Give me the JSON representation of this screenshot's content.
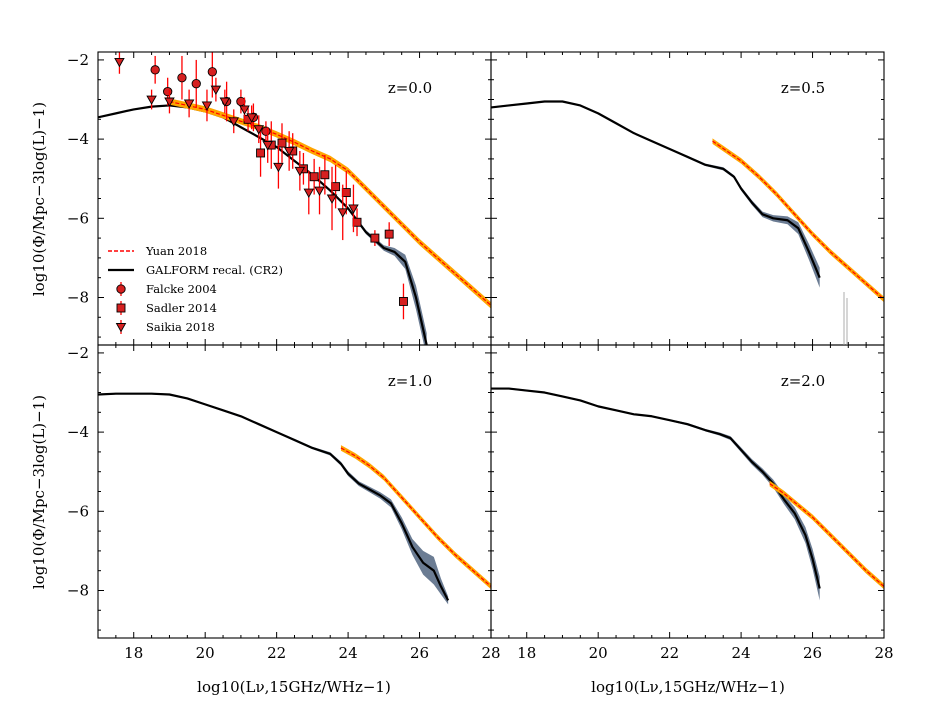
{
  "chart_data": {
    "type": "line",
    "xlabel": "log10(Lν,15GHz/WHz−1)",
    "ylabel": "log10(Φ/Mpc−3log(L)−1)",
    "xlim": [
      17,
      28
    ],
    "ylim": [
      -9.2,
      -1.8
    ],
    "xticks": [
      18,
      20,
      22,
      24,
      26,
      28
    ],
    "yticks": [
      -2,
      -4,
      -6,
      -8
    ],
    "legend": {
      "placement": "lower-left of top-left panel",
      "entries": [
        "Yuan 2018",
        "GALFORM recal. (CR2)",
        "Falcke 2004",
        "Sadler 2014",
        "Saikia 2018"
      ]
    },
    "colors": {
      "galform": "#000000",
      "galform_band": "#6b7c93",
      "yuan_line": "#ff0000",
      "yuan_band": "#ffa500",
      "obs_marker": "#d62020",
      "obs_error": "#ff0000"
    },
    "panels": [
      {
        "z_label": "z=0.0",
        "series": [
          {
            "name": "GALFORM recal. (CR2)",
            "x": [
              17.0,
              17.5,
              18.0,
              18.5,
              19.0,
              19.5,
              20.0,
              20.5,
              21.0,
              21.5,
              22.0,
              22.5,
              23.0,
              23.5,
              24.0,
              24.5,
              25.0,
              25.3,
              25.6,
              25.9,
              26.2
            ],
            "y": [
              -3.45,
              -3.35,
              -3.25,
              -3.18,
              -3.15,
              -3.2,
              -3.3,
              -3.45,
              -3.7,
              -3.95,
              -4.2,
              -4.55,
              -4.9,
              -5.3,
              -5.75,
              -6.35,
              -6.75,
              -6.85,
              -7.1,
              -8.0,
              -9.2
            ],
            "band": [
              0.02,
              0.02,
              0.02,
              0.02,
              0.02,
              0.02,
              0.02,
              0.02,
              0.02,
              0.02,
              0.02,
              0.03,
              0.03,
              0.03,
              0.04,
              0.05,
              0.07,
              0.1,
              0.18,
              0.3,
              0.3
            ]
          },
          {
            "name": "Yuan 2018",
            "x": [
              19.0,
              19.5,
              20.0,
              20.5,
              21.0,
              21.5,
              22.0,
              22.5,
              23.0,
              23.5,
              24.0,
              24.5,
              25.0,
              25.5,
              26.0,
              26.5,
              27.0,
              27.5,
              28.0
            ],
            "y": [
              -3.05,
              -3.15,
              -3.25,
              -3.4,
              -3.55,
              -3.7,
              -3.88,
              -4.08,
              -4.3,
              -4.5,
              -4.8,
              -5.25,
              -5.7,
              -6.15,
              -6.6,
              -7.0,
              -7.4,
              -7.8,
              -8.2
            ],
            "band": 0.08
          },
          {
            "name": "Falcke 2004",
            "x": [
              18.6,
              18.95,
              19.35,
              19.75,
              20.2,
              20.6,
              21.0,
              21.35,
              21.7
            ],
            "y": [
              -2.25,
              -2.8,
              -2.45,
              -2.6,
              -2.3,
              -3.05,
              -3.05,
              -3.45,
              -3.8
            ],
            "err": [
              0.35,
              0.35,
              0.55,
              0.6,
              0.65,
              0.5,
              0.3,
              0.35,
              0.25
            ]
          },
          {
            "name": "Sadler 2014",
            "x": [
              21.2,
              21.55,
              21.85,
              22.15,
              22.45,
              22.75,
              23.05,
              23.35,
              23.65,
              23.95,
              24.25,
              24.75,
              25.15,
              25.55
            ],
            "y": [
              -3.5,
              -4.35,
              -4.15,
              -4.1,
              -4.3,
              -4.75,
              -4.95,
              -4.9,
              -5.2,
              -5.35,
              -6.1,
              -6.5,
              -6.4,
              -8.1
            ],
            "err": [
              0.3,
              0.6,
              0.6,
              0.5,
              0.45,
              0.4,
              0.45,
              0.5,
              0.55,
              0.55,
              0.35,
              0.2,
              0.3,
              0.45
            ]
          },
          {
            "name": "Saikia 2018",
            "x": [
              17.6,
              18.5,
              19.0,
              19.55,
              20.05,
              20.3,
              20.55,
              20.8,
              21.1,
              21.3,
              21.5,
              21.75,
              22.05,
              22.35,
              22.65,
              22.9,
              23.2,
              23.55,
              23.85,
              24.15
            ],
            "y": [
              -2.05,
              -3.0,
              -3.05,
              -3.1,
              -3.15,
              -2.75,
              -3.05,
              -3.55,
              -3.25,
              -3.45,
              -3.75,
              -4.15,
              -4.7,
              -4.3,
              -4.8,
              -5.35,
              -5.3,
              -5.5,
              -5.85,
              -5.75
            ],
            "err": [
              0.3,
              0.25,
              0.3,
              0.35,
              0.4,
              0.3,
              0.3,
              0.3,
              0.3,
              0.3,
              0.35,
              0.45,
              0.55,
              0.5,
              0.5,
              0.55,
              0.6,
              0.8,
              0.7,
              0.6
            ]
          }
        ]
      },
      {
        "z_label": "z=0.5",
        "series": [
          {
            "name": "GALFORM recal. (CR2)",
            "x": [
              17.0,
              17.5,
              18.0,
              18.5,
              19.0,
              19.5,
              20.0,
              20.5,
              21.0,
              21.5,
              22.0,
              22.5,
              23.0,
              23.5,
              23.8,
              24.0,
              24.3,
              24.6,
              24.9,
              25.3,
              25.6,
              25.9,
              26.2
            ],
            "y": [
              -3.2,
              -3.15,
              -3.1,
              -3.05,
              -3.05,
              -3.15,
              -3.35,
              -3.6,
              -3.85,
              -4.05,
              -4.25,
              -4.45,
              -4.65,
              -4.75,
              -4.95,
              -5.25,
              -5.6,
              -5.9,
              -6.0,
              -6.05,
              -6.25,
              -6.85,
              -7.5
            ],
            "band": [
              0.02,
              0.02,
              0.02,
              0.02,
              0.02,
              0.02,
              0.02,
              0.02,
              0.02,
              0.02,
              0.02,
              0.03,
              0.03,
              0.04,
              0.04,
              0.05,
              0.06,
              0.07,
              0.08,
              0.1,
              0.15,
              0.2,
              0.25
            ]
          },
          {
            "name": "Yuan 2018",
            "x": [
              23.2,
              23.6,
              24.0,
              24.5,
              25.0,
              25.5,
              26.0,
              26.5,
              27.0,
              27.5,
              28.0
            ],
            "y": [
              -4.05,
              -4.3,
              -4.55,
              -4.95,
              -5.4,
              -5.9,
              -6.4,
              -6.85,
              -7.25,
              -7.65,
              -8.05
            ],
            "band": 0.07
          }
        ]
      },
      {
        "z_label": "z=1.0",
        "series": [
          {
            "name": "GALFORM recal. (CR2)",
            "x": [
              17.0,
              17.5,
              18.0,
              18.5,
              19.0,
              19.5,
              20.0,
              20.5,
              21.0,
              21.5,
              22.0,
              22.5,
              23.0,
              23.5,
              23.8,
              24.0,
              24.3,
              24.6,
              24.9,
              25.2,
              25.5,
              25.8,
              26.1,
              26.4,
              26.6,
              26.8
            ],
            "y": [
              -3.05,
              -3.03,
              -3.03,
              -3.03,
              -3.05,
              -3.15,
              -3.3,
              -3.45,
              -3.6,
              -3.8,
              -4.0,
              -4.2,
              -4.4,
              -4.55,
              -4.8,
              -5.05,
              -5.3,
              -5.45,
              -5.6,
              -5.8,
              -6.3,
              -6.9,
              -7.3,
              -7.5,
              -7.9,
              -8.25
            ],
            "band": [
              0.02,
              0.02,
              0.02,
              0.02,
              0.02,
              0.02,
              0.02,
              0.02,
              0.02,
              0.02,
              0.02,
              0.03,
              0.03,
              0.04,
              0.05,
              0.06,
              0.06,
              0.07,
              0.08,
              0.1,
              0.15,
              0.2,
              0.3,
              0.35,
              0.2,
              0.1
            ]
          },
          {
            "name": "Yuan 2018",
            "x": [
              23.8,
              24.2,
              24.6,
              25.0,
              25.5,
              26.0,
              26.5,
              27.0,
              27.5,
              28.0
            ],
            "y": [
              -4.4,
              -4.6,
              -4.85,
              -5.15,
              -5.65,
              -6.15,
              -6.65,
              -7.1,
              -7.5,
              -7.9
            ],
            "band": 0.07
          }
        ]
      },
      {
        "z_label": "z=2.0",
        "series": [
          {
            "name": "GALFORM recal. (CR2)",
            "x": [
              17.0,
              17.5,
              18.0,
              18.5,
              19.0,
              19.5,
              20.0,
              20.5,
              21.0,
              21.5,
              22.0,
              22.5,
              23.0,
              23.4,
              23.7,
              24.0,
              24.3,
              24.6,
              24.9,
              25.2,
              25.5,
              25.8,
              26.0,
              26.2
            ],
            "y": [
              -2.9,
              -2.9,
              -2.95,
              -3.0,
              -3.1,
              -3.2,
              -3.35,
              -3.45,
              -3.55,
              -3.6,
              -3.7,
              -3.8,
              -3.95,
              -4.05,
              -4.15,
              -4.45,
              -4.75,
              -5.0,
              -5.3,
              -5.7,
              -6.05,
              -6.6,
              -7.2,
              -7.95
            ],
            "band": [
              0.02,
              0.02,
              0.02,
              0.02,
              0.02,
              0.02,
              0.02,
              0.02,
              0.02,
              0.02,
              0.02,
              0.03,
              0.03,
              0.04,
              0.05,
              0.06,
              0.07,
              0.08,
              0.1,
              0.12,
              0.15,
              0.2,
              0.25,
              0.3
            ]
          },
          {
            "name": "Yuan 2018",
            "x": [
              24.8,
              25.2,
              25.6,
              26.0,
              26.5,
              27.0,
              27.5,
              28.0
            ],
            "y": [
              -5.3,
              -5.55,
              -5.85,
              -6.15,
              -6.6,
              -7.05,
              -7.5,
              -7.9
            ],
            "band": 0.07
          }
        ]
      }
    ]
  }
}
